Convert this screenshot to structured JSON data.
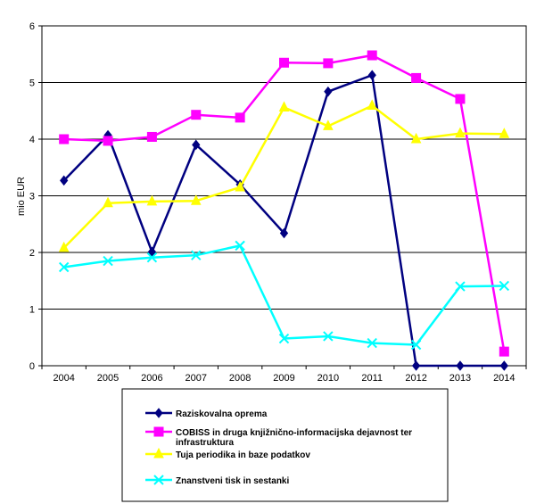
{
  "chart_data": {
    "type": "line",
    "title": "",
    "xlabel": "",
    "ylabel": "mio EUR",
    "ylim": [
      0,
      6
    ],
    "yticks": [
      "0",
      "1",
      "2",
      "3",
      "4",
      "5",
      "6"
    ],
    "grid": "horizontal",
    "legend_position": "bottom",
    "categories": [
      "2004",
      "2005",
      "2006",
      "2007",
      "2008",
      "2009",
      "2010",
      "2011",
      "2012",
      "2013",
      "2014"
    ],
    "series": [
      {
        "name": "Raziskovalna oprema",
        "color": "#000080",
        "marker": "diamond",
        "values": [
          3.27,
          4.07,
          2.01,
          3.9,
          3.2,
          2.34,
          4.84,
          5.13,
          0.0,
          0.0,
          0.0
        ]
      },
      {
        "name": "COBISS in druga knjižnično-informacijska dejavnost ter infrastruktura",
        "name_lines": [
          "COBISS in druga knjižnično-informacijska dejavnost ter",
          "infrastruktura"
        ],
        "color": "#ff00ff",
        "marker": "square",
        "values": [
          4.0,
          3.97,
          4.04,
          4.43,
          4.38,
          5.35,
          5.34,
          5.48,
          5.08,
          4.71,
          0.25
        ]
      },
      {
        "name": "Tuja periodika in baze podatkov",
        "color": "#ffff00",
        "marker": "triangle",
        "values": [
          2.08,
          2.87,
          2.9,
          2.91,
          3.15,
          4.56,
          4.23,
          4.59,
          4.0,
          4.1,
          4.09
        ]
      },
      {
        "name": "Znanstveni tisk in sestanki",
        "color": "#00ffff",
        "marker": "x",
        "values": [
          1.74,
          1.85,
          1.91,
          1.95,
          2.12,
          0.48,
          0.52,
          0.4,
          0.37,
          1.4,
          1.41
        ]
      }
    ]
  }
}
